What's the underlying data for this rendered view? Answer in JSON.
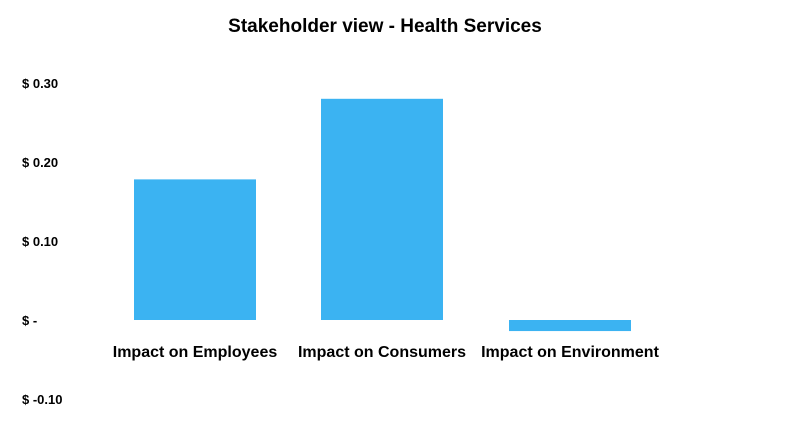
{
  "chart_data": {
    "type": "bar",
    "title": "Stakeholder view - Health Services",
    "xlabel": "",
    "ylabel": "",
    "categories": [
      "Impact on Employees",
      "Impact on Consumers",
      "Impact on Environment"
    ],
    "values": [
      0.178,
      0.28,
      -0.014
    ],
    "ylim": [
      -0.1,
      0.3
    ],
    "yticks": [
      0.3,
      0.2,
      0.1,
      0,
      -0.1
    ],
    "ytick_labels": [
      "$ 0.30",
      "$ 0.20",
      "$ 0.10",
      "$ -",
      "$ -0.10"
    ],
    "grid": false,
    "legend": "none",
    "colors": {
      "bar": "#3bb3f2",
      "text": "#000000",
      "background": "#ffffff"
    }
  }
}
